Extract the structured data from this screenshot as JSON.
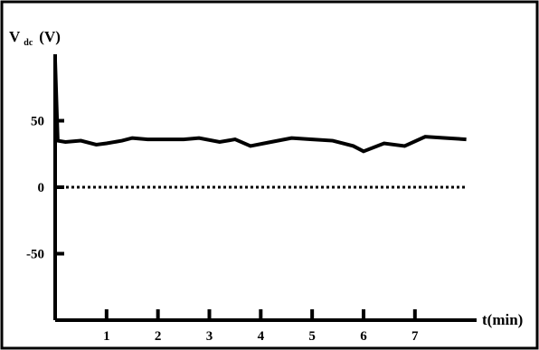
{
  "chart_data": {
    "type": "line",
    "title": "",
    "ylabel_main": "V",
    "ylabel_sub": "dc",
    "ylabel_unit": "(V)",
    "xlabel": "t(min)",
    "x_ticks": [
      "1",
      "2",
      "3",
      "4",
      "5",
      "6",
      "7"
    ],
    "y_ticks": [
      "50",
      "0",
      "-50"
    ],
    "xlim": [
      0,
      8.2
    ],
    "ylim": [
      -100,
      100
    ],
    "grid": false,
    "frame": true,
    "series": [
      {
        "style": "solid",
        "x": [
          0,
          0.05,
          0.2,
          0.5,
          0.8,
          1.0,
          1.3,
          1.5,
          1.8,
          2.2,
          2.5,
          2.8,
          3.2,
          3.5,
          3.8,
          4.2,
          4.6,
          5.0,
          5.4,
          5.8,
          6.0,
          6.4,
          6.8,
          7.2,
          7.6,
          8.0
        ],
        "y": [
          95,
          35,
          34,
          35,
          32,
          33,
          35,
          37,
          36,
          36,
          36,
          37,
          34,
          36,
          31,
          34,
          37,
          36,
          35,
          31,
          27,
          33,
          31,
          38,
          37,
          36
        ]
      },
      {
        "style": "dotted",
        "x": [
          0,
          1,
          2,
          3,
          4,
          5,
          6,
          7,
          8
        ],
        "y": [
          0,
          0,
          0,
          0,
          0,
          0,
          0,
          0,
          0
        ]
      }
    ]
  }
}
